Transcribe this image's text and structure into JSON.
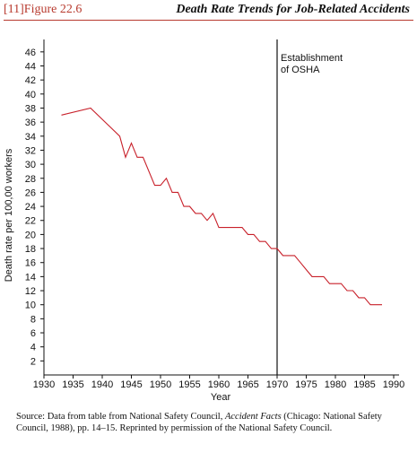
{
  "figure": {
    "number": "[11]Figure 22.6",
    "title": "Death Rate Trends for Job-Related Accidents"
  },
  "source_note": {
    "prefix": "Source: Data from table from National Safety Council, ",
    "italic": "Accident Facts",
    "suffix": " (Chicago: National Safety Council, 1988), pp. 14–15. Reprinted by permission of the National Safety Council."
  },
  "chart_data": {
    "type": "line",
    "title": "Death Rate Trends for Job-Related Accidents",
    "xlabel": "Year",
    "ylabel": "Death rate per 100,00 workers",
    "xlim": [
      1930,
      1990
    ],
    "ylim": [
      0,
      47
    ],
    "x_ticks": [
      1930,
      1935,
      1940,
      1945,
      1950,
      1955,
      1960,
      1965,
      1970,
      1975,
      1980,
      1985,
      1990
    ],
    "y_ticks": [
      2,
      4,
      6,
      8,
      10,
      12,
      14,
      16,
      18,
      20,
      22,
      24,
      26,
      28,
      30,
      32,
      34,
      36,
      38,
      40,
      42,
      44,
      46
    ],
    "grid": false,
    "line_color": "#c8202a",
    "annotation": {
      "x": 1970,
      "text_lines": [
        "Establishment",
        "of OSHA"
      ]
    },
    "series": [
      {
        "x": [
          1933,
          1938,
          1943,
          1944,
          1945,
          1946,
          1947,
          1949,
          1950,
          1951,
          1952,
          1953,
          1954,
          1955,
          1956,
          1957,
          1958,
          1959,
          1960,
          1961,
          1962,
          1963,
          1964,
          1965,
          1966,
          1967,
          1968,
          1969,
          1970,
          1971,
          1972,
          1973,
          1974,
          1975,
          1976,
          1977,
          1978,
          1979,
          1980,
          1981,
          1982,
          1983,
          1984,
          1985,
          1986,
          1987,
          1988
        ],
        "y": [
          37,
          38,
          34,
          31,
          33,
          31,
          31,
          27,
          27,
          28,
          26,
          26,
          24,
          24,
          23,
          23,
          22,
          23,
          21,
          21,
          21,
          21,
          21,
          20,
          20,
          19,
          19,
          18,
          18,
          17,
          17,
          17,
          16,
          15,
          14,
          14,
          14,
          13,
          13,
          13,
          12,
          12,
          11,
          11,
          10,
          10,
          10
        ]
      }
    ]
  }
}
